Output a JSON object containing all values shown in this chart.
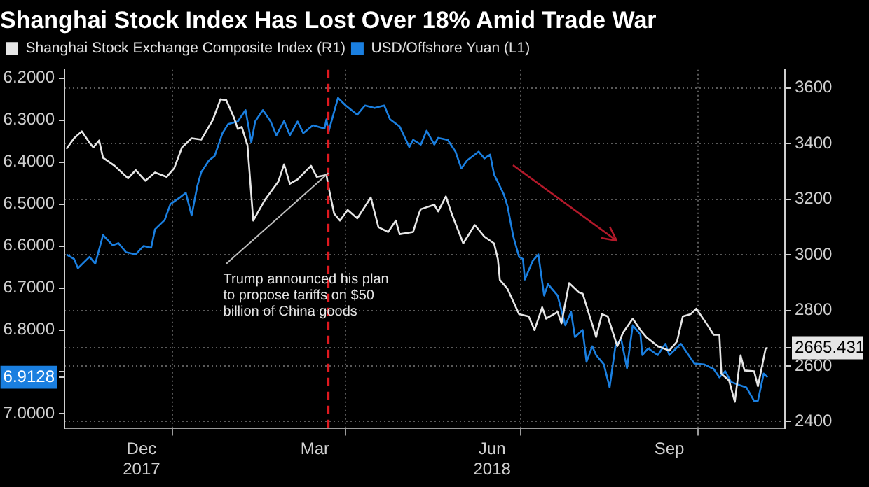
{
  "chart_data": {
    "type": "line",
    "title": "Shanghai Stock Index Has Lost Over 18% Amid Trade War",
    "xlim": [
      "2017-11-06",
      "2018-11-15"
    ],
    "xticks": [
      {
        "value": "2017-12-16",
        "label": "Dec\n2017"
      },
      {
        "value": "2018-01-01",
        "label": null
      },
      {
        "value": "2018-03-16",
        "label": "Mar"
      },
      {
        "value": "2018-04-01",
        "label": null
      },
      {
        "value": "2018-06-16",
        "label": "Jun\n2018"
      },
      {
        "value": "2018-07-01",
        "label": null
      },
      {
        "value": "2018-09-16",
        "label": "Sep"
      },
      {
        "value": "2018-10-01",
        "label": null
      }
    ],
    "ylim": [
      7.035,
      6.18
    ],
    "yticks": [
      {
        "value": 6.2,
        "label": "6.2000"
      },
      {
        "value": 6.3,
        "label": "6.3000"
      },
      {
        "value": 6.4,
        "label": "6.4000"
      },
      {
        "value": 6.5,
        "label": "6.5000"
      },
      {
        "value": 6.6,
        "label": "6.6000"
      },
      {
        "value": 6.7,
        "label": "6.7000"
      },
      {
        "value": 6.8,
        "label": "6.8000"
      },
      {
        "value": 6.9,
        "label": null
      },
      {
        "value": 6.9128,
        "label": "6.9128"
      },
      {
        "value": 7.0,
        "label": "7.0000"
      }
    ],
    "y2lim": [
      2375,
      3665
    ],
    "y2ticks": [
      2400,
      2600,
      2665.431,
      2800,
      3000,
      3200,
      3400,
      3600
    ],
    "grid": true,
    "legend": "top left",
    "series": [
      {
        "name": "Shanghai Stock Exchange Composite Index (R1)",
        "color": "#e6e6e6",
        "axis": "y2",
        "x": [
          "2017-11-07",
          "2017-11-11",
          "2017-11-15",
          "2017-11-19",
          "2017-11-21",
          "2017-11-24",
          "2017-11-26",
          "2017-12-02",
          "2017-12-09",
          "2017-12-13",
          "2017-12-18",
          "2017-12-23",
          "2017-12-29",
          "2018-01-02",
          "2018-01-06",
          "2018-01-11",
          "2018-01-16",
          "2018-01-22",
          "2018-01-26",
          "2018-01-29",
          "2018-02-02",
          "2018-02-04",
          "2018-02-06",
          "2018-02-09",
          "2018-02-12",
          "2018-02-18",
          "2018-02-25",
          "2018-02-28",
          "2018-03-03",
          "2018-03-07",
          "2018-03-14",
          "2018-03-17",
          "2018-03-22",
          "2018-03-23",
          "2018-03-26",
          "2018-03-29",
          "2018-04-02",
          "2018-04-07",
          "2018-04-14",
          "2018-04-18",
          "2018-04-23",
          "2018-04-27",
          "2018-04-29",
          "2018-05-06",
          "2018-05-09",
          "2018-05-10",
          "2018-05-17",
          "2018-05-19",
          "2018-05-23",
          "2018-05-26",
          "2018-06-01",
          "2018-06-07",
          "2018-06-12",
          "2018-06-17",
          "2018-06-19",
          "2018-06-20",
          "2018-06-24",
          "2018-06-30",
          "2018-07-05",
          "2018-07-08",
          "2018-07-12",
          "2018-07-14",
          "2018-07-20",
          "2018-07-22",
          "2018-07-26",
          "2018-07-31",
          "2018-08-02",
          "2018-08-09",
          "2018-08-12",
          "2018-08-15",
          "2018-08-20",
          "2018-08-23",
          "2018-08-28",
          "2018-09-01",
          "2018-09-04",
          "2018-09-10",
          "2018-09-16",
          "2018-09-20",
          "2018-09-23",
          "2018-09-27",
          "2018-09-30",
          "2018-10-06",
          "2018-10-09",
          "2018-10-12",
          "2018-10-13",
          "2018-10-17",
          "2018-10-20",
          "2018-10-23",
          "2018-10-25",
          "2018-10-30",
          "2018-11-01",
          "2018-11-05",
          "2018-11-06"
        ],
        "values": [
          3381,
          3419,
          3444,
          3403,
          3386,
          3411,
          3349,
          3320,
          3275,
          3304,
          3266,
          3296,
          3280,
          3312,
          3386,
          3419,
          3414,
          3485,
          3559,
          3556,
          3493,
          3452,
          3460,
          3394,
          3123,
          3197,
          3263,
          3325,
          3255,
          3271,
          3320,
          3280,
          3287,
          3246,
          3148,
          3123,
          3161,
          3131,
          3206,
          3099,
          3082,
          3123,
          3074,
          3082,
          3148,
          3164,
          3180,
          3156,
          3210,
          3148,
          3041,
          3107,
          3065,
          3041,
          2984,
          2910,
          2877,
          2786,
          2778,
          2729,
          2811,
          2770,
          2794,
          2753,
          2898,
          2865,
          2860,
          2704,
          2786,
          2778,
          2671,
          2720,
          2770,
          2729,
          2704,
          2671,
          2655,
          2688,
          2778,
          2786,
          2806,
          2745,
          2712,
          2712,
          2572,
          2548,
          2471,
          2638,
          2584,
          2581,
          2527,
          2663,
          2665.431
        ]
      },
      {
        "name": "USD/Offshore Yuan (L1)",
        "color": "#1a7fe0",
        "axis": "y",
        "x": [
          "2017-11-07",
          "2017-11-11",
          "2017-11-13",
          "2017-11-19",
          "2017-11-22",
          "2017-11-26",
          "2017-12-01",
          "2017-12-04",
          "2017-12-08",
          "2017-12-13",
          "2017-12-17",
          "2017-12-21",
          "2017-12-23",
          "2017-12-28",
          "2017-12-31",
          "2018-01-05",
          "2018-01-08",
          "2018-01-11",
          "2018-01-14",
          "2018-01-16",
          "2018-01-20",
          "2018-01-23",
          "2018-01-27",
          "2018-01-30",
          "2018-02-04",
          "2018-02-08",
          "2018-02-11",
          "2018-02-13",
          "2018-02-17",
          "2018-02-21",
          "2018-02-24",
          "2018-02-28",
          "2018-03-03",
          "2018-03-07",
          "2018-03-10",
          "2018-03-15",
          "2018-03-21",
          "2018-03-22",
          "2018-03-23",
          "2018-03-28",
          "2018-04-01",
          "2018-04-07",
          "2018-04-11",
          "2018-04-16",
          "2018-04-21",
          "2018-04-24",
          "2018-04-29",
          "2018-05-04",
          "2018-05-06",
          "2018-05-10",
          "2018-05-13",
          "2018-05-17",
          "2018-05-19",
          "2018-05-24",
          "2018-05-28",
          "2018-05-31",
          "2018-06-03",
          "2018-06-09",
          "2018-06-12",
          "2018-06-15",
          "2018-06-17",
          "2018-06-22",
          "2018-06-24",
          "2018-06-27",
          "2018-06-30",
          "2018-07-02",
          "2018-07-03",
          "2018-07-07",
          "2018-07-10",
          "2018-07-13",
          "2018-07-15",
          "2018-07-20",
          "2018-07-24",
          "2018-07-27",
          "2018-07-29",
          "2018-08-02",
          "2018-08-04",
          "2018-08-07",
          "2018-08-09",
          "2018-08-13",
          "2018-08-16",
          "2018-08-19",
          "2018-08-22",
          "2018-08-25",
          "2018-08-28",
          "2018-09-01",
          "2018-09-02",
          "2018-09-05",
          "2018-09-10",
          "2018-09-14",
          "2018-09-16",
          "2018-09-22",
          "2018-09-26",
          "2018-09-29",
          "2018-10-04",
          "2018-10-09",
          "2018-10-12",
          "2018-10-15",
          "2018-10-18",
          "2018-10-22",
          "2018-10-26",
          "2018-10-30",
          "2018-11-01",
          "2018-11-04",
          "2018-11-06"
        ],
        "values": [
          6.62,
          6.631,
          6.653,
          6.626,
          6.642,
          6.574,
          6.598,
          6.593,
          6.615,
          6.62,
          6.6,
          6.604,
          6.56,
          6.538,
          6.5,
          6.484,
          6.473,
          6.527,
          6.456,
          6.424,
          6.396,
          6.385,
          6.331,
          6.309,
          6.303,
          6.276,
          6.353,
          6.303,
          6.276,
          6.303,
          6.336,
          6.302,
          6.336,
          6.303,
          6.331,
          6.312,
          6.32,
          6.298,
          6.329,
          6.247,
          6.265,
          6.287,
          6.265,
          6.271,
          6.265,
          6.298,
          6.315,
          6.364,
          6.347,
          6.358,
          6.325,
          6.358,
          6.342,
          6.347,
          6.375,
          6.415,
          6.396,
          6.375,
          6.391,
          6.382,
          6.429,
          6.476,
          6.505,
          6.577,
          6.626,
          6.631,
          6.68,
          6.636,
          6.62,
          6.718,
          6.691,
          6.718,
          6.789,
          6.757,
          6.817,
          6.8,
          6.876,
          6.839,
          6.86,
          6.882,
          6.937,
          6.839,
          6.822,
          6.891,
          6.789,
          6.811,
          6.86,
          6.844,
          6.86,
          6.833,
          6.86,
          6.833,
          6.86,
          6.88,
          6.882,
          6.893,
          6.913,
          6.898,
          6.924,
          6.931,
          6.937,
          6.969,
          6.969,
          6.904,
          6.9128
        ]
      }
    ],
    "ref_lines": [
      {
        "axis": "x",
        "value": "2018-03-23",
        "color": "#e0191f",
        "line_style": "dashed"
      }
    ],
    "annotations": [
      {
        "text": "Trump announced his plan\nto propose tariffs on $50\nbillion of China goods",
        "x": "2018-03-23",
        "y": 6.426
      }
    ]
  }
}
